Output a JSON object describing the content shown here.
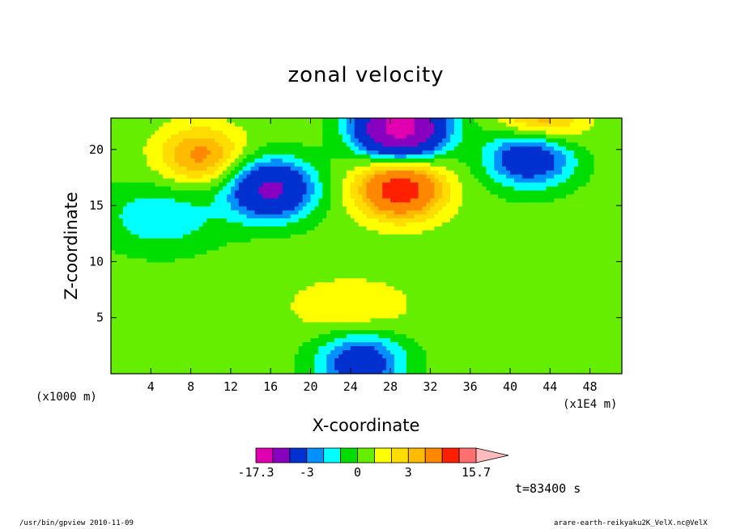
{
  "chart_data": {
    "type": "heatmap",
    "title": "zonal velocity",
    "xlabel": "X-coordinate",
    "ylabel": "Z-coordinate",
    "x_unit": "(x1000 m)",
    "x_scale": "(x1E4 m)",
    "xlim": [
      0,
      51.2
    ],
    "ylim": [
      0,
      22.8
    ],
    "x_ticks": [
      4,
      8,
      12,
      16,
      20,
      24,
      28,
      32,
      36,
      40,
      44,
      48
    ],
    "y_ticks": [
      5,
      10,
      15,
      20
    ],
    "colorbar": {
      "min_label": "-17.3",
      "max_label": "15.7",
      "mid_labels": [
        "-3",
        "0",
        "3"
      ],
      "levels": [
        -17.3,
        -10,
        -6,
        -3,
        -2,
        -1,
        0,
        1,
        2,
        3,
        4,
        6,
        8,
        10,
        15.7
      ],
      "colors": [
        "#e000b0",
        "#8800c0",
        "#0030d0",
        "#0090ff",
        "#00ffff",
        "#00dd00",
        "#66ee00",
        "#ffff00",
        "#ffdd00",
        "#ffbb00",
        "#ff8800",
        "#ff2000",
        "#ff7070",
        "#ffbbbb"
      ]
    },
    "features": [
      {
        "type": "min",
        "x": 29,
        "y": 22,
        "value": -12
      },
      {
        "type": "min",
        "x": 16,
        "y": 16.5,
        "value": -7
      },
      {
        "type": "min",
        "x": 42,
        "y": 19.5,
        "value": -6
      },
      {
        "type": "min",
        "x": 25,
        "y": 1,
        "value": -5
      },
      {
        "type": "max",
        "x": 29,
        "y": 16.5,
        "value": 7
      },
      {
        "type": "max",
        "x": 9,
        "y": 19.5,
        "value": 4
      },
      {
        "type": "max",
        "x": 43,
        "y": 22.5,
        "value": 4
      }
    ]
  },
  "annotations": {
    "time": "t=83400 s",
    "footer_left": "/usr/bin/gpview  2010-11-09",
    "footer_right": "arare-earth-reikyaku2K_VelX.nc@VelX"
  }
}
